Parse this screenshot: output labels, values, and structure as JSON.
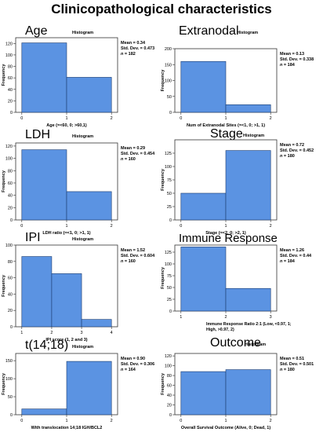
{
  "figure_title": "Clinicopathological characteristics",
  "colors": {
    "bar": "#5b93e2",
    "bar_stroke": "#1a3a6e",
    "plot_bg": "#ffffff",
    "axis": "#333333"
  },
  "chart_data": [
    {
      "type": "bar",
      "big_label": "Age",
      "subtitle": "Histogram",
      "xlabel": "Age (=<60, 0; >60,1)",
      "ylabel": "Frequency",
      "bins": [
        [
          0,
          1
        ],
        [
          1,
          2
        ]
      ],
      "values": [
        121,
        61
      ],
      "xticks": [
        0,
        1,
        2
      ],
      "ylim": [
        0,
        130
      ],
      "yticks": [
        0,
        20,
        40,
        60,
        80,
        100,
        120
      ],
      "stats": {
        "mean": "Mean = 0.34",
        "std": "Std. Dev. = 0.473",
        "n_prefix": "n",
        "n_value": " = 182"
      }
    },
    {
      "type": "bar",
      "big_label": "Extranodal",
      "subtitle": "Histogram",
      "xlabel": "Num of Extranodal Sites (=<1, 0; >1, 1)",
      "ylabel": "Frequency",
      "bins": [
        [
          0,
          1
        ],
        [
          1,
          2
        ]
      ],
      "values": [
        160,
        24
      ],
      "xticks": [
        0,
        1,
        2
      ],
      "ylim": [
        0,
        200
      ],
      "yticks": [
        0,
        50,
        100,
        150,
        200
      ],
      "stats": {
        "mean": "Mean = 0.13",
        "std": "Std. Dev. = 0.338",
        "n_prefix": "n",
        "n_value": " = 184"
      }
    },
    {
      "type": "bar",
      "big_label": "LDH",
      "subtitle": "Histogram",
      "xlabel": "LDH ratio (=<1, 0; >1, 1)",
      "ylabel": "Frequency",
      "bins": [
        [
          0,
          1
        ],
        [
          1,
          2
        ]
      ],
      "values": [
        114,
        46
      ],
      "xticks": [
        0,
        1,
        2
      ],
      "ylim": [
        0,
        125
      ],
      "yticks": [
        0,
        20,
        40,
        60,
        80,
        100,
        120
      ],
      "stats": {
        "mean": "Mean = 0.29",
        "std": "Std. Dev. = 0.454",
        "n_prefix": "n",
        "n_value": " = 160"
      }
    },
    {
      "type": "bar",
      "big_label": "Stage",
      "subtitle": "Histogram",
      "xlabel": "Stage (=<2, 0; >2, 1)",
      "ylabel": "Frequency",
      "bins": [
        [
          0,
          1
        ],
        [
          1,
          2
        ]
      ],
      "values": [
        50,
        130
      ],
      "xticks": [
        0,
        1,
        2
      ],
      "ylim": [
        0,
        150
      ],
      "yticks": [
        0,
        25,
        50,
        75,
        100,
        125
      ],
      "stats": {
        "mean": "Mean = 0.72",
        "std": "Std. Dev. = 0.452",
        "n_prefix": "n",
        "n_value": " = 180"
      }
    },
    {
      "type": "bar",
      "big_label": "IPI",
      "subtitle": "Histogram",
      "xlabel": "IPI score (1, 2 and 3)",
      "ylabel": "Frequency",
      "bins": [
        [
          1,
          2
        ],
        [
          2,
          3
        ],
        [
          3,
          4
        ]
      ],
      "values": [
        86,
        65,
        9
      ],
      "xticks": [
        1,
        2,
        3,
        4
      ],
      "ylim": [
        0,
        100
      ],
      "yticks": [
        0,
        20,
        40,
        60,
        80,
        100
      ],
      "stats": {
        "mean": "Mean = 1.52",
        "std": "Std. Dev. = 0.604",
        "n_prefix": "n",
        "n_value": " = 160"
      }
    },
    {
      "type": "bar",
      "big_label": "Immune Response",
      "subtitle": "",
      "xlabel": "Immune Response Ratio 2:1 (Low, <0.97, 1; High, >0.97, 2)",
      "ylabel": "Frequency",
      "bins": [
        [
          1,
          2
        ],
        [
          2,
          3
        ]
      ],
      "values": [
        136,
        48
      ],
      "xticks": [
        1,
        2,
        3
      ],
      "ylim": [
        0,
        140
      ],
      "yticks": [
        0,
        25,
        50,
        75,
        100,
        125
      ],
      "stats": {
        "mean": "Mean = 1.26",
        "std": "Std. Dev. = 0.44",
        "n_prefix": "n",
        "n_value": " = 184"
      }
    },
    {
      "type": "bar",
      "big_label": "t(14;18)",
      "subtitle": "Histogram",
      "xlabel": "With translocation 14;18 IGH/BCL2",
      "ylabel": "Frequency",
      "bins": [
        [
          0,
          1
        ],
        [
          1,
          2
        ]
      ],
      "values": [
        16,
        148
      ],
      "xticks": [
        0,
        1,
        2
      ],
      "ylim": [
        0,
        170
      ],
      "yticks": [
        0,
        50,
        100,
        150
      ],
      "stats": {
        "mean": "Mean = 0.90",
        "std": "Std. Dev. = 0.306",
        "n_prefix": "n",
        "n_value": " = 164"
      }
    },
    {
      "type": "bar",
      "big_label": "Outcome",
      "subtitle": "Histogram",
      "xlabel": "Overall Survival Outcome (Alive, 0; Dead, 1)",
      "ylabel": "Frequency",
      "bins": [
        [
          0,
          1
        ],
        [
          1,
          2
        ]
      ],
      "values": [
        88,
        92
      ],
      "xticks": [
        0,
        1,
        2
      ],
      "ylim": [
        0,
        125
      ],
      "yticks": [
        0,
        20,
        40,
        60,
        80,
        100,
        120
      ],
      "stats": {
        "mean": "Mean = 0.51",
        "std": "Std. Dev. = 0.501",
        "n_prefix": "n",
        "n_value": " = 180"
      }
    }
  ]
}
